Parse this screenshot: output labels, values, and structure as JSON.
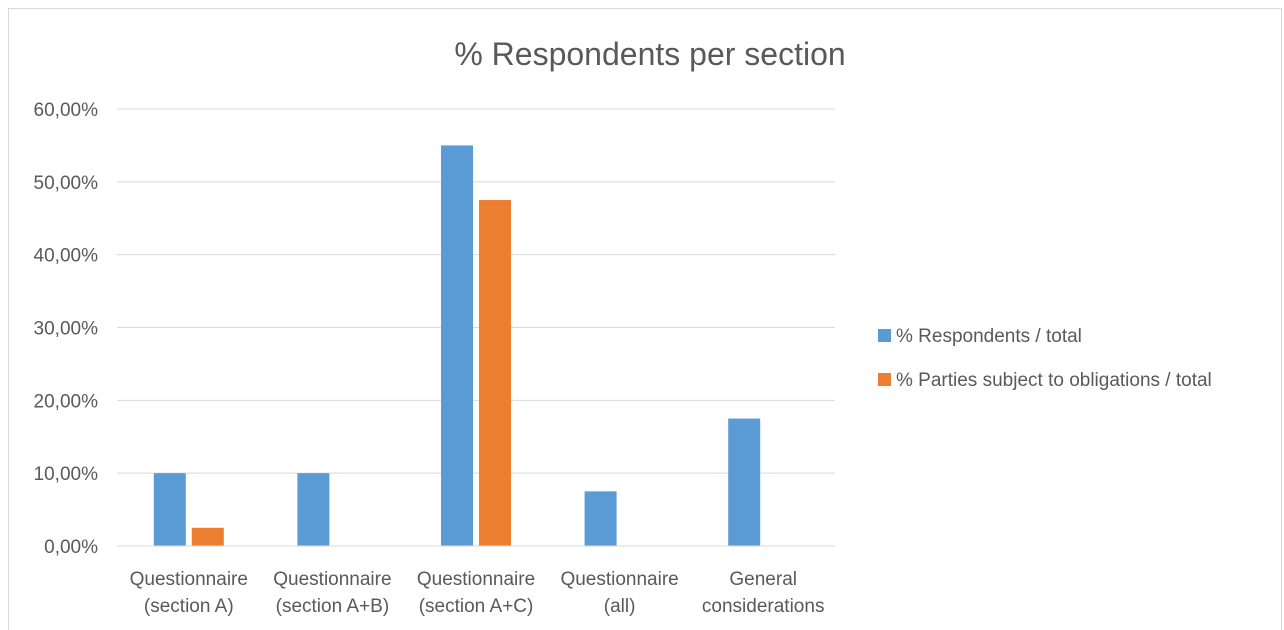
{
  "chart_data": {
    "type": "bar",
    "title": "% Respondents per section",
    "xlabel": "",
    "ylabel": "",
    "categories": [
      [
        "Questionnaire",
        "(section A)"
      ],
      [
        "Questionnaire",
        "(section A+B)"
      ],
      [
        "Questionnaire",
        "(section A+C)"
      ],
      [
        "Questionnaire",
        "(all)"
      ],
      [
        "General",
        "considerations"
      ]
    ],
    "series": [
      {
        "name": "% Respondents / total",
        "color": "#5b9bd5",
        "values": [
          0.1,
          0.1,
          0.55,
          0.075,
          0.175
        ]
      },
      {
        "name": "% Parties subject to obligations / total",
        "color": "#ed7d31",
        "values": [
          0.025,
          0.0,
          0.475,
          0.0,
          0.0
        ]
      }
    ],
    "ylim": [
      0,
      0.6
    ],
    "yticks": [
      0,
      0.1,
      0.2,
      0.3,
      0.4,
      0.5,
      0.6
    ],
    "ytick_labels": [
      "0,00%",
      "10,00%",
      "20,00%",
      "30,00%",
      "40,00%",
      "50,00%",
      "60,00%"
    ],
    "grid": true,
    "legend_position": "right"
  }
}
